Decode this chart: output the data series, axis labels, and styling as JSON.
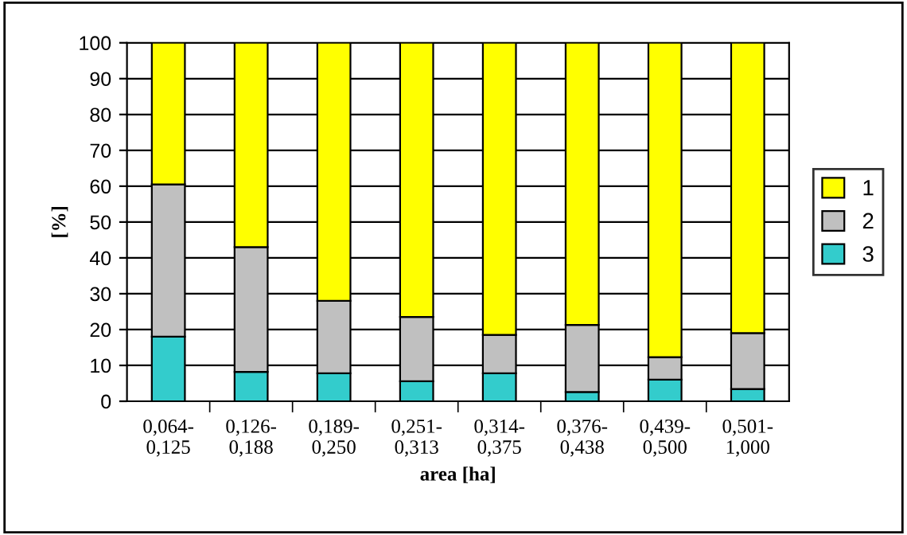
{
  "chart_data": {
    "type": "bar",
    "stacked": true,
    "xlabel": "area [ha]",
    "ylabel": "[%]",
    "categories": [
      "0,064-\n0,125",
      "0,126-\n0,188",
      "0,189-\n0,250",
      "0,251-\n0,313",
      "0,314-\n0,375",
      "0,376-\n0,438",
      "0,439-\n0,500",
      "0,501-\n1,000"
    ],
    "series": [
      {
        "name": "3",
        "color": "#33cccc",
        "values": [
          18,
          8.2,
          7.8,
          5.6,
          7.8,
          2.6,
          6,
          3.4
        ]
      },
      {
        "name": "2",
        "color": "#c0c0c0",
        "values": [
          42.5,
          34.8,
          20.2,
          17.9,
          10.7,
          18.7,
          6.3,
          15.6
        ]
      },
      {
        "name": "1",
        "color": "#ffff00",
        "values": [
          39.5,
          57,
          72,
          76.5,
          81.5,
          78.7,
          87.7,
          81
        ]
      }
    ],
    "ylim": [
      0,
      100
    ],
    "yticks": [
      0,
      10,
      20,
      30,
      40,
      50,
      60,
      70,
      80,
      90,
      100
    ],
    "grid": "y",
    "legend": "right"
  }
}
